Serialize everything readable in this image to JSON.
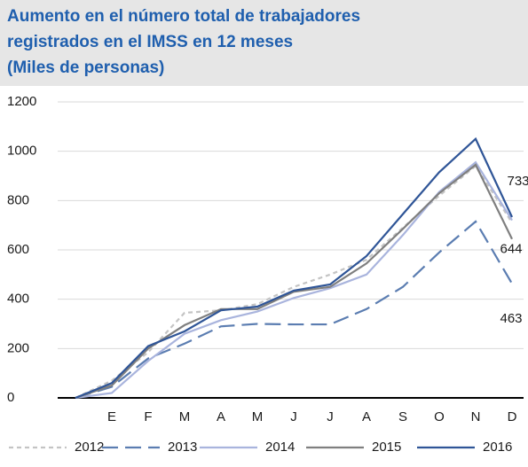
{
  "chart_data": {
    "type": "line",
    "title": [
      "Aumento en el número total de trabajadores",
      "registrados en el IMSS en 12 meses",
      "(Miles de personas)"
    ],
    "categories": [
      null,
      "E",
      "F",
      "M",
      "A",
      "M",
      "J",
      "J",
      "A",
      "S",
      "O",
      "N",
      "D"
    ],
    "series": [
      {
        "name": "2012",
        "color": "#c4c4c4",
        "dash": "dotted",
        "values": [
          0,
          70,
          185,
          345,
          355,
          380,
          450,
          500,
          560,
          690,
          820,
          940,
          710
        ]
      },
      {
        "name": "2013",
        "color": "#5b7db1",
        "dash": "dashed",
        "values": [
          0,
          45,
          160,
          220,
          290,
          300,
          298,
          298,
          360,
          450,
          590,
          715,
          463
        ]
      },
      {
        "name": "2014",
        "color": "#a9b4dd",
        "dash": "solid",
        "values": [
          0,
          20,
          150,
          260,
          315,
          350,
          405,
          445,
          500,
          660,
          835,
          955,
          720
        ]
      },
      {
        "name": "2015",
        "color": "#7f7f7f",
        "dash": "solid",
        "values": [
          0,
          50,
          200,
          295,
          360,
          360,
          430,
          450,
          545,
          685,
          830,
          945,
          644
        ]
      },
      {
        "name": "2016",
        "color": "#2f5597",
        "dash": "solid",
        "values": [
          0,
          60,
          210,
          270,
          355,
          370,
          435,
          460,
          575,
          745,
          915,
          1050,
          733
        ]
      }
    ],
    "ylim": [
      0,
      1200
    ],
    "yticks": [
      0,
      200,
      400,
      600,
      800,
      1000,
      1200
    ],
    "grid": true
  }
}
